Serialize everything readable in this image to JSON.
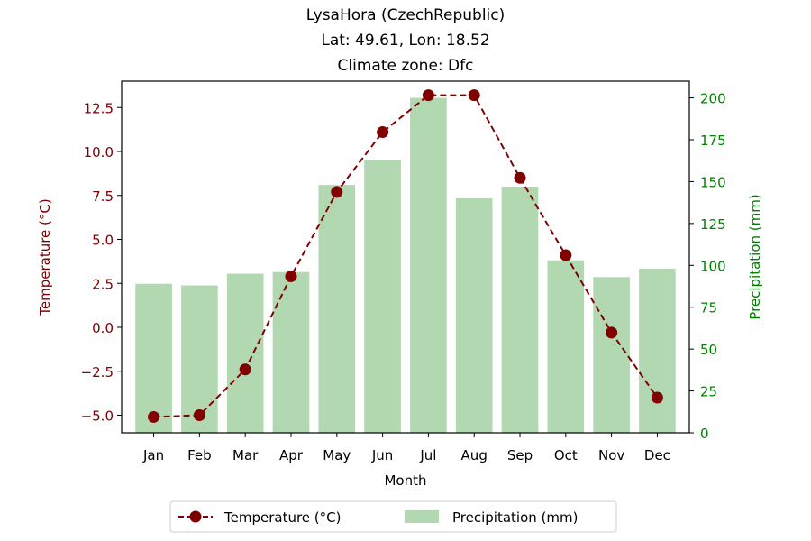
{
  "chart_data": {
    "type": "bar+line",
    "title_lines": [
      "LysaHora (CzechRepublic)",
      "Lat: 49.61, Lon: 18.52",
      "Climate zone: Dfc"
    ],
    "xlabel": "Month",
    "ylabel_left": "Temperature (°C)",
    "ylabel_right": "Precipitation (mm)",
    "categories": [
      "Jan",
      "Feb",
      "Mar",
      "Apr",
      "May",
      "Jun",
      "Jul",
      "Aug",
      "Sep",
      "Oct",
      "Nov",
      "Dec"
    ],
    "temperature": {
      "name": "Temperature (°C)",
      "values": [
        -5.1,
        -5.0,
        -2.4,
        2.9,
        7.7,
        11.1,
        13.2,
        13.2,
        8.5,
        4.1,
        -0.3,
        -4.0
      ],
      "color": "#800000",
      "ylim": [
        -6.0,
        14.0
      ],
      "ticks": [
        -5.0,
        -2.5,
        0.0,
        2.5,
        5.0,
        7.5,
        10.0,
        12.5
      ],
      "tick_labels": [
        "−5.0",
        "−2.5",
        "0.0",
        "2.5",
        "5.0",
        "7.5",
        "10.0",
        "12.5"
      ]
    },
    "precipitation": {
      "name": "Precipitation (mm)",
      "values": [
        89,
        88,
        95,
        96,
        148,
        163,
        200,
        140,
        147,
        103,
        93,
        98
      ],
      "color": "#b2d8b2",
      "axis_color": "#008000",
      "ylim": [
        0,
        210
      ],
      "ticks": [
        0,
        25,
        50,
        75,
        100,
        125,
        150,
        175,
        200
      ],
      "tick_labels": [
        "0",
        "25",
        "50",
        "75",
        "100",
        "125",
        "150",
        "175",
        "200"
      ]
    },
    "legend": {
      "placement": "bottom-center",
      "entries": [
        "Temperature (°C)",
        "Precipitation (mm)"
      ]
    }
  }
}
